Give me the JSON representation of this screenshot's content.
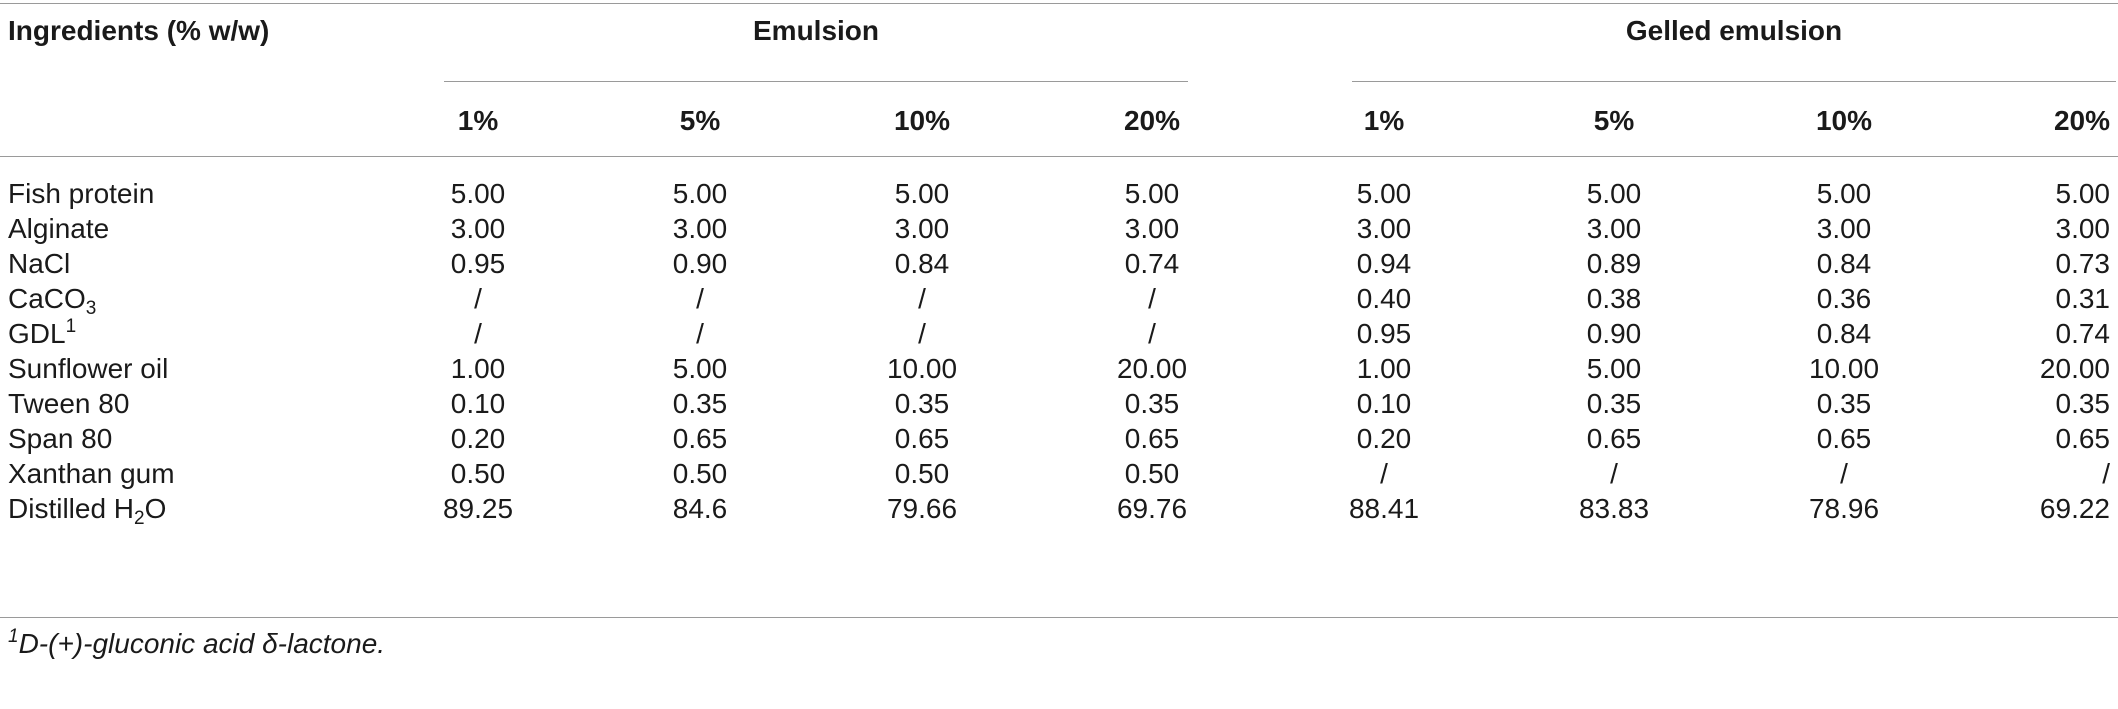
{
  "table": {
    "header": {
      "ingredients_label": "Ingredients (% w/w)",
      "group_emulsion": "Emulsion",
      "group_gelled": "Gelled emulsion",
      "emulsion_columns": [
        "1%",
        "5%",
        "10%",
        "20%"
      ],
      "gelled_columns": [
        "1%",
        "5%",
        "10%",
        "20%"
      ]
    },
    "rows": [
      {
        "label": "Fish protein",
        "values": [
          "5.00",
          "5.00",
          "5.00",
          "5.00",
          "5.00",
          "5.00",
          "5.00",
          "5.00"
        ]
      },
      {
        "label": "Alginate",
        "values": [
          "3.00",
          "3.00",
          "3.00",
          "3.00",
          "3.00",
          "3.00",
          "3.00",
          "3.00"
        ]
      },
      {
        "label": "NaCl",
        "values": [
          "0.95",
          "0.90",
          "0.84",
          "0.74",
          "0.94",
          "0.89",
          "0.84",
          "0.73"
        ]
      },
      {
        "label_main": "CaCO",
        "label_sub": "3",
        "values": [
          "/",
          "/",
          "/",
          "/",
          "0.40",
          "0.38",
          "0.36",
          "0.31"
        ]
      },
      {
        "label_main": "GDL",
        "label_sup": "1",
        "values": [
          "/",
          "/",
          "/",
          "/",
          "0.95",
          "0.90",
          "0.84",
          "0.74"
        ]
      },
      {
        "label": "Sunflower oil",
        "values": [
          "1.00",
          "5.00",
          "10.00",
          "20.00",
          "1.00",
          "5.00",
          "10.00",
          "20.00"
        ]
      },
      {
        "label": "Tween 80",
        "values": [
          "0.10",
          "0.35",
          "0.35",
          "0.35",
          "0.10",
          "0.35",
          "0.35",
          "0.35"
        ]
      },
      {
        "label": "Span 80",
        "values": [
          "0.20",
          "0.65",
          "0.65",
          "0.65",
          "0.20",
          "0.65",
          "0.65",
          "0.65"
        ]
      },
      {
        "label": "Xanthan gum",
        "values": [
          "0.50",
          "0.50",
          "0.50",
          "0.50",
          "/",
          "/",
          "/",
          "/"
        ]
      },
      {
        "label_main": "Distilled H",
        "label_sub": "2",
        "label_tail": "O",
        "values": [
          "89.25",
          "84.6",
          "79.66",
          "69.76",
          "88.41",
          "83.83",
          "78.96",
          "69.22"
        ]
      }
    ],
    "footnote": {
      "marker": "1",
      "text": "D-(+)-gluconic acid δ-lactone."
    }
  }
}
